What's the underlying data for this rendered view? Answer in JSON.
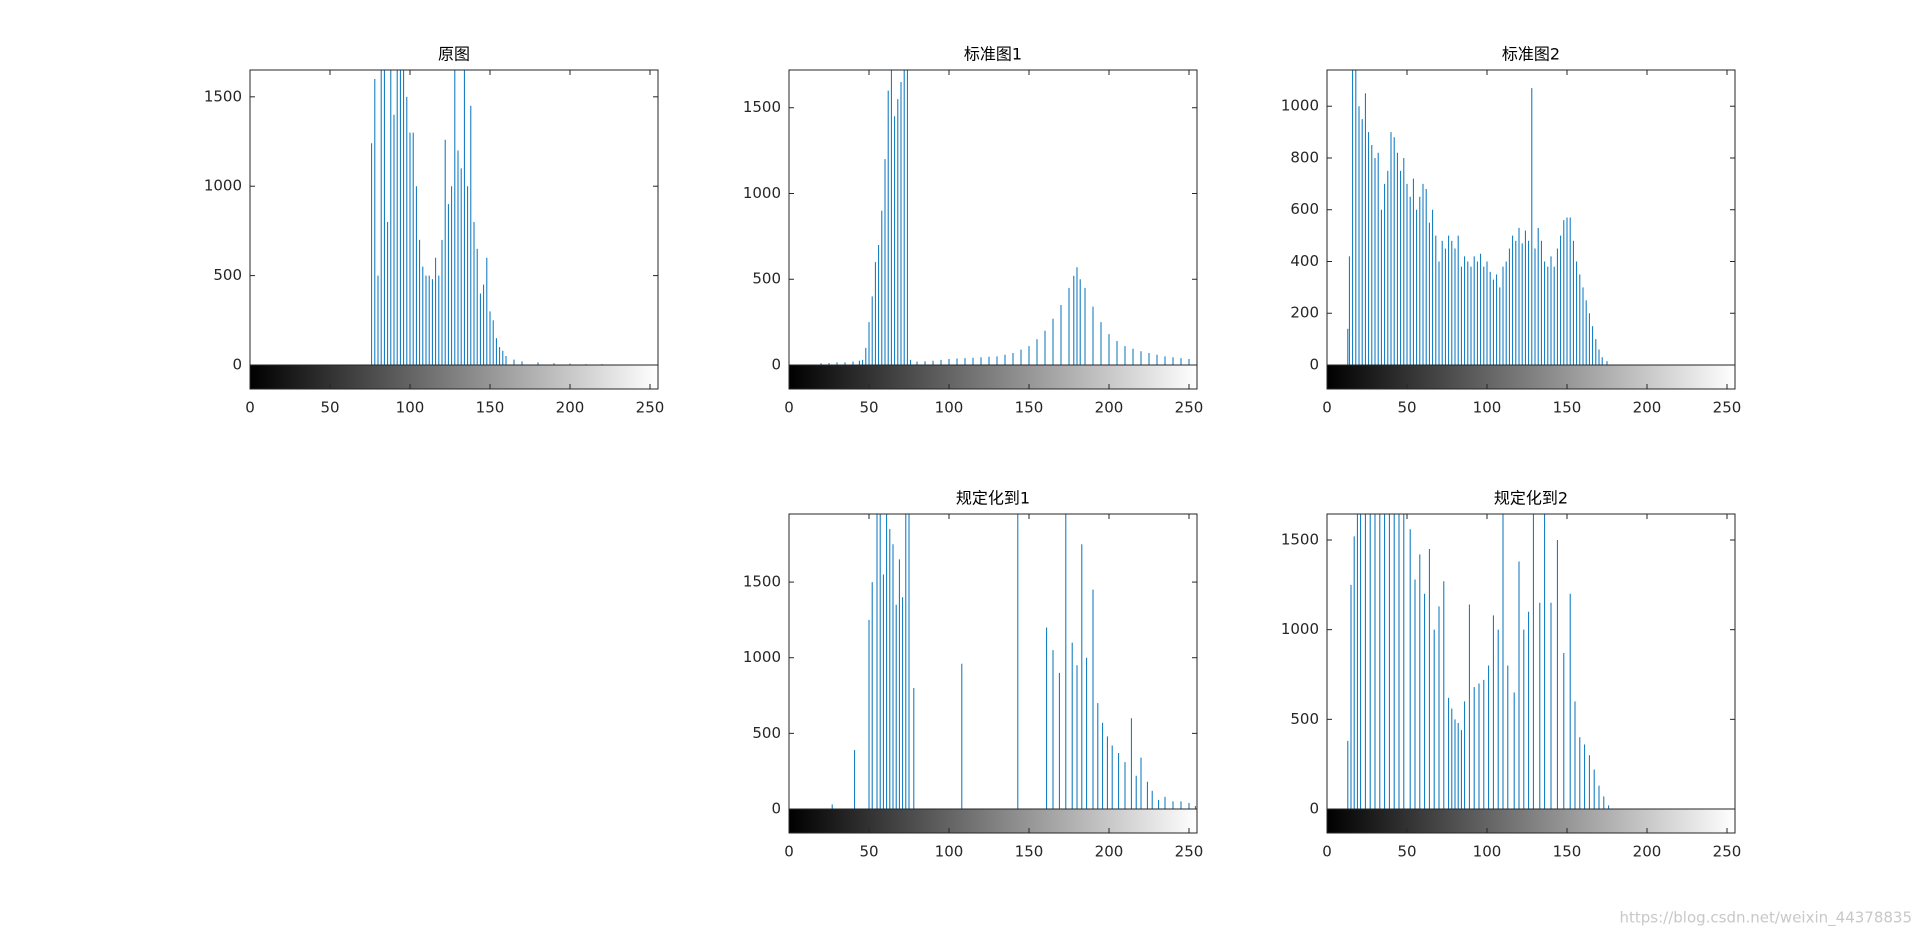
{
  "chart_data": [
    {
      "type": "stem",
      "title": "原图",
      "color": "#0072bd",
      "xlim": [
        0,
        255
      ],
      "ylim": [
        0,
        1650
      ],
      "xticks": [
        0,
        50,
        100,
        150,
        200,
        250
      ],
      "yticks": [
        0,
        500,
        1000,
        1500
      ],
      "x": [
        76,
        78,
        80,
        82,
        84,
        86,
        88,
        90,
        92,
        94,
        96,
        98,
        100,
        102,
        104,
        106,
        108,
        110,
        112,
        114,
        116,
        118,
        120,
        122,
        124,
        126,
        128,
        130,
        132,
        134,
        136,
        138,
        140,
        142,
        144,
        146,
        148,
        150,
        152,
        154,
        156,
        158,
        160,
        165,
        170,
        180,
        190,
        200,
        210,
        220
      ],
      "values": [
        1240,
        1600,
        500,
        1700,
        1650,
        800,
        1700,
        1400,
        1700,
        1700,
        1650,
        1500,
        1300,
        1300,
        1000,
        700,
        550,
        500,
        500,
        480,
        600,
        500,
        700,
        1260,
        900,
        1000,
        1700,
        1200,
        1100,
        1700,
        1000,
        1450,
        800,
        650,
        400,
        450,
        600,
        300,
        250,
        150,
        100,
        80,
        50,
        30,
        20,
        15,
        10,
        8,
        5,
        5
      ]
    },
    {
      "type": "stem",
      "title": "标准图1",
      "color": "#0072bd",
      "xlim": [
        0,
        255
      ],
      "ylim": [
        0,
        1720
      ],
      "xticks": [
        0,
        50,
        100,
        150,
        200,
        250
      ],
      "yticks": [
        0,
        500,
        1000,
        1500
      ],
      "x": [
        20,
        25,
        30,
        35,
        40,
        44,
        46,
        48,
        50,
        52,
        54,
        56,
        58,
        60,
        62,
        64,
        66,
        68,
        70,
        72,
        74,
        76,
        80,
        85,
        90,
        95,
        100,
        105,
        110,
        115,
        120,
        125,
        130,
        135,
        140,
        145,
        150,
        155,
        160,
        165,
        170,
        175,
        178,
        180,
        182,
        185,
        190,
        195,
        200,
        205,
        210,
        215,
        220,
        225,
        230,
        235,
        240,
        245,
        250,
        255
      ],
      "values": [
        10,
        12,
        15,
        15,
        20,
        25,
        30,
        100,
        250,
        400,
        600,
        700,
        900,
        1200,
        1600,
        1750,
        1450,
        1550,
        1650,
        1750,
        1750,
        30,
        20,
        22,
        25,
        30,
        35,
        38,
        40,
        42,
        45,
        48,
        50,
        60,
        70,
        90,
        110,
        150,
        200,
        270,
        350,
        450,
        520,
        570,
        500,
        450,
        340,
        250,
        180,
        140,
        110,
        95,
        80,
        70,
        60,
        50,
        45,
        40,
        35,
        25
      ]
    },
    {
      "type": "stem",
      "title": "标准图2",
      "color": "#0072bd",
      "xlim": [
        0,
        255
      ],
      "ylim": [
        0,
        1140
      ],
      "xticks": [
        0,
        50,
        100,
        150,
        200,
        250
      ],
      "yticks": [
        0,
        200,
        400,
        600,
        800,
        1000
      ],
      "x": [
        13,
        14,
        16,
        18,
        20,
        22,
        24,
        26,
        28,
        30,
        32,
        34,
        36,
        38,
        40,
        42,
        44,
        46,
        48,
        50,
        52,
        54,
        56,
        58,
        60,
        62,
        64,
        66,
        68,
        70,
        72,
        74,
        76,
        78,
        80,
        82,
        84,
        86,
        88,
        90,
        92,
        94,
        96,
        98,
        100,
        102,
        104,
        106,
        108,
        110,
        112,
        114,
        116,
        118,
        120,
        122,
        124,
        126,
        128,
        130,
        132,
        134,
        136,
        138,
        140,
        142,
        144,
        146,
        148,
        150,
        152,
        154,
        156,
        158,
        160,
        162,
        164,
        166,
        168,
        170,
        172,
        175
      ],
      "values": [
        140,
        420,
        1140,
        1140,
        1000,
        950,
        1050,
        900,
        850,
        800,
        820,
        600,
        700,
        750,
        900,
        880,
        820,
        750,
        800,
        700,
        650,
        720,
        600,
        650,
        700,
        680,
        550,
        600,
        500,
        400,
        480,
        450,
        500,
        480,
        450,
        500,
        380,
        420,
        400,
        380,
        420,
        400,
        430,
        380,
        400,
        360,
        330,
        350,
        300,
        380,
        400,
        450,
        500,
        480,
        530,
        470,
        520,
        480,
        1070,
        450,
        530,
        480,
        400,
        380,
        420,
        380,
        450,
        500,
        560,
        570,
        570,
        480,
        400,
        350,
        300,
        250,
        200,
        150,
        100,
        60,
        30,
        15
      ]
    },
    {
      "type": "stem",
      "title": "规定化到1",
      "color": "#0072bd",
      "xlim": [
        0,
        255
      ],
      "ylim": [
        0,
        1950
      ],
      "xticks": [
        0,
        50,
        100,
        150,
        200,
        250
      ],
      "yticks": [
        0,
        500,
        1000,
        1500
      ],
      "x": [
        27,
        41,
        50,
        52,
        55,
        57,
        59,
        61,
        63,
        65,
        67,
        69,
        71,
        73,
        75,
        78,
        108,
        143,
        161,
        165,
        169,
        173,
        177,
        180,
        183,
        186,
        190,
        193,
        196,
        199,
        202,
        206,
        210,
        214,
        217,
        220,
        224,
        227,
        231,
        235,
        240,
        245,
        250,
        254
      ],
      "values": [
        30,
        390,
        1250,
        1500,
        1950,
        1950,
        1550,
        1950,
        1850,
        1750,
        1350,
        1650,
        1400,
        1950,
        1950,
        800,
        960,
        1950,
        1200,
        1050,
        900,
        1950,
        1100,
        950,
        1750,
        1000,
        1450,
        700,
        570,
        480,
        420,
        370,
        310,
        600,
        220,
        340,
        180,
        120,
        60,
        80,
        50,
        50,
        40,
        20
      ]
    },
    {
      "type": "stem",
      "title": "规定化到2",
      "color": "#0072bd",
      "xlim": [
        0,
        255
      ],
      "ylim": [
        0,
        1645
      ],
      "xticks": [
        0,
        50,
        100,
        150,
        200,
        250
      ],
      "yticks": [
        0,
        500,
        1000,
        1500
      ],
      "x": [
        13,
        15,
        17,
        19,
        21,
        24,
        27,
        30,
        33,
        36,
        39,
        42,
        45,
        48,
        52,
        55,
        58,
        61,
        64,
        67,
        70,
        73,
        76,
        78,
        80,
        82,
        84,
        86,
        89,
        92,
        95,
        98,
        101,
        104,
        107,
        110,
        113,
        117,
        120,
        123,
        126,
        129,
        133,
        136,
        140,
        144,
        148,
        152,
        155,
        158,
        161,
        164,
        167,
        170,
        173,
        176
      ],
      "values": [
        380,
        1250,
        1520,
        1645,
        1645,
        1645,
        1645,
        1645,
        1645,
        1645,
        1645,
        1645,
        1645,
        1645,
        1560,
        1280,
        1420,
        1200,
        1450,
        1000,
        1130,
        1270,
        620,
        560,
        500,
        480,
        440,
        600,
        1140,
        680,
        700,
        720,
        800,
        1080,
        1000,
        1645,
        800,
        650,
        1380,
        1000,
        1100,
        1645,
        1150,
        1645,
        1150,
        1500,
        870,
        1200,
        600,
        400,
        360,
        300,
        220,
        130,
        70,
        20
      ]
    }
  ],
  "watermark": "https://blog.csdn.net/weixin_44378835"
}
